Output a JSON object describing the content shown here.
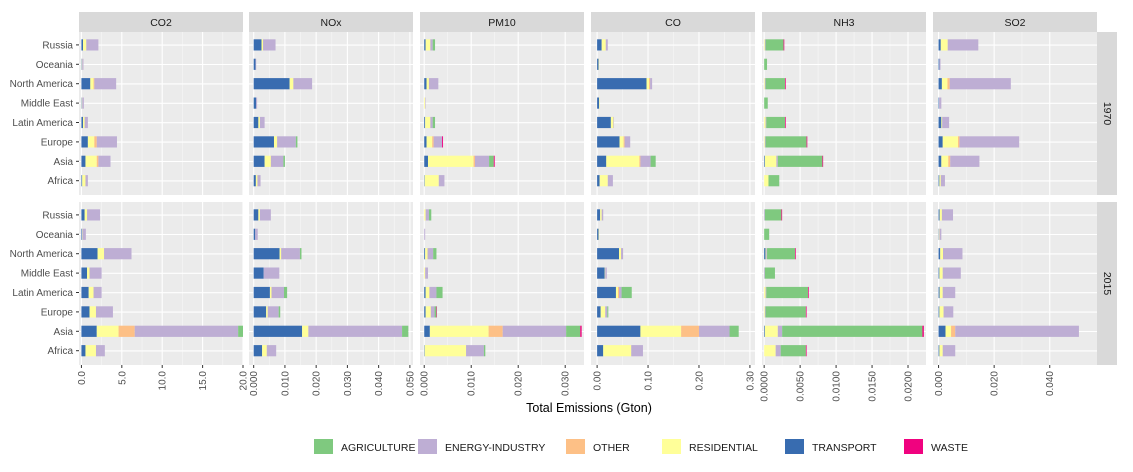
{
  "chart_data": {
    "type": "bar",
    "orientation": "horizontal",
    "stacked": true,
    "xlabel": "Total Emissions (Gton)",
    "pollutants": [
      "CO2",
      "NOx",
      "PM10",
      "CO",
      "NH3",
      "SO2"
    ],
    "years": [
      "1970",
      "2015"
    ],
    "regions": [
      "Africa",
      "Asia",
      "Europe",
      "Latin America",
      "Middle East",
      "North America",
      "Oceania",
      "Russia"
    ],
    "sectors": [
      "AGRICULTURE",
      "ENERGY-INDUSTRY",
      "OTHER",
      "RESIDENTIAL",
      "TRANSPORT",
      "WASTE"
    ],
    "stack_order": [
      "TRANSPORT",
      "RESIDENTIAL",
      "OTHER",
      "ENERGY-INDUSTRY",
      "AGRICULTURE",
      "WASTE"
    ],
    "colors": {
      "AGRICULTURE": "#7fc97f",
      "ENERGY-INDUSTRY": "#beaed4",
      "OTHER": "#fdc086",
      "RESIDENTIAL": "#ffff99",
      "TRANSPORT": "#386cb0",
      "WASTE": "#f0027f"
    },
    "xlim": {
      "CO2": [
        -0.3,
        20
      ],
      "NOx": [
        -0.0015,
        0.051
      ],
      "PM10": [
        -0.0009,
        0.034
      ],
      "CO": [
        -0.012,
        0.31
      ],
      "NH3": [
        -0.0003,
        0.0225
      ],
      "SO2": [
        -0.002,
        0.057
      ]
    },
    "xticks": {
      "CO2": {
        "values": [
          0,
          5,
          10,
          15,
          20
        ],
        "labels": [
          "0.0",
          "5.0",
          "10.0",
          "15.0",
          "20.0"
        ]
      },
      "NOx": {
        "values": [
          0,
          0.01,
          0.02,
          0.03,
          0.04,
          0.05
        ],
        "labels": [
          "0.000",
          "0.010",
          "0.020",
          "0.030",
          "0.040",
          "0.050"
        ]
      },
      "PM10": {
        "values": [
          0,
          0.01,
          0.02,
          0.03
        ],
        "labels": [
          "0.000",
          "0.010",
          "0.020",
          "0.030"
        ]
      },
      "CO": {
        "values": [
          0,
          0.1,
          0.2,
          0.3
        ],
        "labels": [
          "0.00",
          "0.10",
          "0.20",
          "0.30"
        ]
      },
      "NH3": {
        "values": [
          0,
          0.005,
          0.01,
          0.015,
          0.02
        ],
        "labels": [
          "0.0000",
          "0.0050",
          "0.0100",
          "0.0150",
          "0.0200"
        ]
      },
      "SO2": {
        "values": [
          0,
          0.02,
          0.04
        ],
        "labels": [
          "0.000",
          "0.020",
          "0.040"
        ]
      }
    },
    "values": {
      "1970": {
        "CO2": {
          "Russia": [
            0,
            1.5,
            0,
            0.4,
            0.2,
            0
          ],
          "Oceania": [
            0,
            0.15,
            0,
            0.05,
            0.05,
            0
          ],
          "North America": [
            0,
            2.7,
            0.1,
            0.4,
            1.1,
            0
          ],
          "Middle East": [
            0,
            0.2,
            0,
            0.05,
            0.05,
            0
          ],
          "Latin America": [
            0,
            0.4,
            0,
            0.2,
            0.2,
            0
          ],
          "Europe": [
            0,
            2.5,
            0.3,
            0.8,
            0.8,
            0
          ],
          "Asia": [
            0,
            1.5,
            0.2,
            1.4,
            0.5,
            0
          ],
          "Africa": [
            0,
            0.3,
            0,
            0.4,
            0.1,
            0
          ]
        },
        "NOx": {
          "Russia": [
            0,
            0.004,
            0,
            0.0005,
            0.0025,
            0
          ],
          "Oceania": [
            0,
            0.0002,
            0,
            0,
            0.0006,
            0
          ],
          "North America": [
            0,
            0.006,
            0,
            0.0012,
            0.0115,
            0
          ],
          "Middle East": [
            0,
            0.0003,
            0,
            0,
            0.0008,
            0
          ],
          "Latin America": [
            0,
            0.0015,
            0,
            0.0005,
            0.0015,
            0
          ],
          "Europe": [
            0.0005,
            0.006,
            0,
            0.001,
            0.0065,
            0
          ],
          "Asia": [
            0.0005,
            0.004,
            0,
            0.002,
            0.0035,
            0
          ],
          "Africa": [
            0,
            0.001,
            0,
            0.0005,
            0.0007,
            0
          ]
        },
        "PM10": {
          "Russia": [
            0.0005,
            0.0005,
            0,
            0.001,
            0.0003,
            0
          ],
          "Oceania": [
            0,
            0,
            0,
            0,
            0,
            0
          ],
          "North America": [
            0,
            0.002,
            0,
            0.0005,
            0.0005,
            0
          ],
          "Middle East": [
            0,
            0.0001,
            0,
            0.0002,
            0,
            0
          ],
          "Latin America": [
            0.0005,
            0.0005,
            0,
            0.0011,
            0.0002,
            0
          ],
          "Europe": [
            0,
            0.0018,
            0.0003,
            0.0012,
            0.0005,
            0.0002
          ],
          "Asia": [
            0.001,
            0.003,
            0.0003,
            0.0097,
            0.0008,
            0.0002
          ],
          "Africa": [
            0,
            0.0012,
            0,
            0.003,
            0.0001,
            0
          ]
        },
        "CO": {
          "Russia": [
            0,
            0.004,
            0,
            0.008,
            0.009,
            0
          ],
          "Oceania": [
            0,
            0,
            0,
            0.001,
            0.003,
            0
          ],
          "North America": [
            0,
            0.004,
            0.002,
            0.005,
            0.097,
            0
          ],
          "Middle East": [
            0,
            0,
            0,
            0.001,
            0.004,
            0
          ],
          "Latin America": [
            0,
            0.001,
            0,
            0.005,
            0.027,
            0
          ],
          "Europe": [
            0,
            0.011,
            0.002,
            0.008,
            0.044,
            0
          ],
          "Asia": [
            0.01,
            0.02,
            0.002,
            0.065,
            0.018,
            0
          ],
          "Africa": [
            0,
            0.01,
            0,
            0.016,
            0.005,
            0
          ]
        },
        "NH3": {
          "Russia": [
            0.0025,
            0.0001,
            0,
            0.0001,
            0,
            0.0001
          ],
          "Oceania": [
            0.0004,
            0,
            0,
            0,
            0,
            0
          ],
          "North America": [
            0.0027,
            0.0001,
            0,
            0.0001,
            0,
            0.0001
          ],
          "Middle East": [
            0.0005,
            0,
            0,
            0,
            0,
            0
          ],
          "Latin America": [
            0.0026,
            0.0001,
            0,
            0.0002,
            0,
            0.0001
          ],
          "Europe": [
            0.0057,
            0.0001,
            0,
            0.0001,
            0,
            0.0001
          ],
          "Asia": [
            0.0062,
            0.0002,
            0,
            0.0016,
            0.0001,
            0.0001
          ],
          "Africa": [
            0.0015,
            0,
            0,
            0.0006,
            0,
            0
          ]
        },
        "SO2": {
          "Russia": [
            0,
            0.011,
            0,
            0.0025,
            0.0008,
            0
          ],
          "Oceania": [
            0,
            0.0004,
            0,
            0,
            0.0003,
            0
          ],
          "North America": [
            0,
            0.022,
            0.0008,
            0.002,
            0.0012,
            0
          ],
          "Middle East": [
            0,
            0.0008,
            0,
            0,
            0.0002,
            0
          ],
          "Latin America": [
            0,
            0.0025,
            0,
            0.0003,
            0.001,
            0
          ],
          "Europe": [
            0,
            0.0215,
            0.0005,
            0.0055,
            0.0015,
            0
          ],
          "Asia": [
            0,
            0.0105,
            0.0007,
            0.0025,
            0.001,
            0
          ],
          "Africa": [
            0,
            0.0015,
            0,
            0.0005,
            0.0003,
            0
          ]
        }
      },
      "2015": {
        "CO2": {
          "Russia": [
            0,
            1.6,
            0,
            0.3,
            0.4,
            0
          ],
          "Oceania": [
            0,
            0.4,
            0,
            0.05,
            0.1,
            0
          ],
          "North America": [
            0,
            3.4,
            0,
            0.8,
            2.0,
            0
          ],
          "Middle East": [
            0,
            1.5,
            0,
            0.3,
            0.7,
            0
          ],
          "Latin America": [
            0,
            1.0,
            0,
            0.6,
            0.9,
            0
          ],
          "Europe": [
            0,
            2.1,
            0,
            0.8,
            1.0,
            0
          ],
          "Asia": [
            0.6,
            12.8,
            2.0,
            2.7,
            1.9,
            0
          ],
          "Africa": [
            0,
            1.1,
            0,
            1.3,
            0.5,
            0
          ]
        },
        "NOx": {
          "Russia": [
            0,
            0.0035,
            0,
            0.0005,
            0.0015,
            0
          ],
          "Oceania": [
            0,
            0.0008,
            0,
            0,
            0.0005,
            0
          ],
          "North America": [
            0.0005,
            0.006,
            0,
            0.0005,
            0.0083,
            0
          ],
          "Middle East": [
            0,
            0.005,
            0,
            0,
            0.0032,
            0
          ],
          "Latin America": [
            0.001,
            0.004,
            0,
            0.0005,
            0.0052,
            0
          ],
          "Europe": [
            0.0005,
            0.0035,
            0,
            0.0005,
            0.004,
            0
          ],
          "Asia": [
            0.002,
            0.03,
            0,
            0.002,
            0.0155,
            0
          ],
          "Africa": [
            0,
            0.003,
            0,
            0.0015,
            0.0027,
            0
          ]
        },
        "PM10": {
          "Russia": [
            0.0005,
            0.0007,
            0,
            0.0003,
            0,
            0
          ],
          "Oceania": [
            0,
            0.0002,
            0,
            0,
            0,
            0
          ],
          "North America": [
            0.0007,
            0.0012,
            0,
            0.0005,
            0.0002,
            0
          ],
          "Middle East": [
            0,
            0.0006,
            0,
            0.0002,
            0,
            0
          ],
          "Latin America": [
            0.0013,
            0.0015,
            0,
            0.0008,
            0.0003,
            0
          ],
          "Europe": [
            0.0004,
            0.0008,
            0,
            0.0011,
            0.0003,
            0.0001
          ],
          "Asia": [
            0.003,
            0.0135,
            0.003,
            0.0125,
            0.0012,
            0.0003
          ],
          "Africa": [
            0.0003,
            0.0038,
            0,
            0.0088,
            0.0001,
            0
          ]
        },
        "CO": {
          "Russia": [
            0,
            0.003,
            0,
            0.003,
            0.006,
            0
          ],
          "Oceania": [
            0,
            0,
            0,
            0.001,
            0.003,
            0
          ],
          "North America": [
            0,
            0.004,
            0,
            0.004,
            0.043,
            0
          ],
          "Middle East": [
            0,
            0.003,
            0,
            0.001,
            0.015,
            0
          ],
          "Latin America": [
            0.02,
            0.005,
            0.002,
            0.004,
            0.037,
            0
          ],
          "Europe": [
            0.002,
            0.004,
            0,
            0.009,
            0.007,
            0
          ],
          "Asia": [
            0.018,
            0.06,
            0.035,
            0.08,
            0.085,
            0
          ],
          "Africa": [
            0,
            0.023,
            0,
            0.055,
            0.012,
            0
          ]
        },
        "NH3": {
          "Russia": [
            0.0023,
            0.0001,
            0,
            0,
            0,
            0.0001
          ],
          "Oceania": [
            0.0007,
            0,
            0,
            0,
            0,
            0
          ],
          "North America": [
            0.0039,
            0.0001,
            0,
            0.0001,
            0.0002,
            0.0001
          ],
          "Middle East": [
            0.0014,
            0.0001,
            0,
            0,
            0,
            0
          ],
          "Latin America": [
            0.0058,
            0.0001,
            0,
            0.0002,
            0,
            0.0001
          ],
          "Europe": [
            0.0056,
            0.0001,
            0,
            0.0001,
            0,
            0.0001
          ],
          "Asia": [
            0.0195,
            0.0006,
            0,
            0.0018,
            0.0001,
            0.0002
          ],
          "Africa": [
            0.0035,
            0.0007,
            0,
            0.0016,
            0,
            0.0001
          ]
        },
        "SO2": {
          "Russia": [
            0,
            0.004,
            0,
            0.0008,
            0.0004,
            0
          ],
          "Oceania": [
            0,
            0.0007,
            0,
            0.0002,
            0.0001,
            0
          ],
          "North America": [
            0,
            0.007,
            0,
            0.001,
            0.0006,
            0
          ],
          "Middle East": [
            0,
            0.0065,
            0,
            0.0012,
            0.0003,
            0
          ],
          "Latin America": [
            0,
            0.0045,
            0,
            0.0011,
            0.0004,
            0
          ],
          "Europe": [
            0,
            0.0035,
            0,
            0.0015,
            0.0003,
            0
          ],
          "Asia": [
            0,
            0.0445,
            0.0015,
            0.002,
            0.0025,
            0
          ],
          "Africa": [
            0,
            0.0045,
            0,
            0.0012,
            0.0003,
            0
          ]
        }
      }
    },
    "legend": {
      "position": "bottom",
      "entries": [
        "AGRICULTURE",
        "ENERGY-INDUSTRY",
        "OTHER",
        "RESIDENTIAL",
        "TRANSPORT",
        "WASTE"
      ]
    },
    "grid": true
  }
}
